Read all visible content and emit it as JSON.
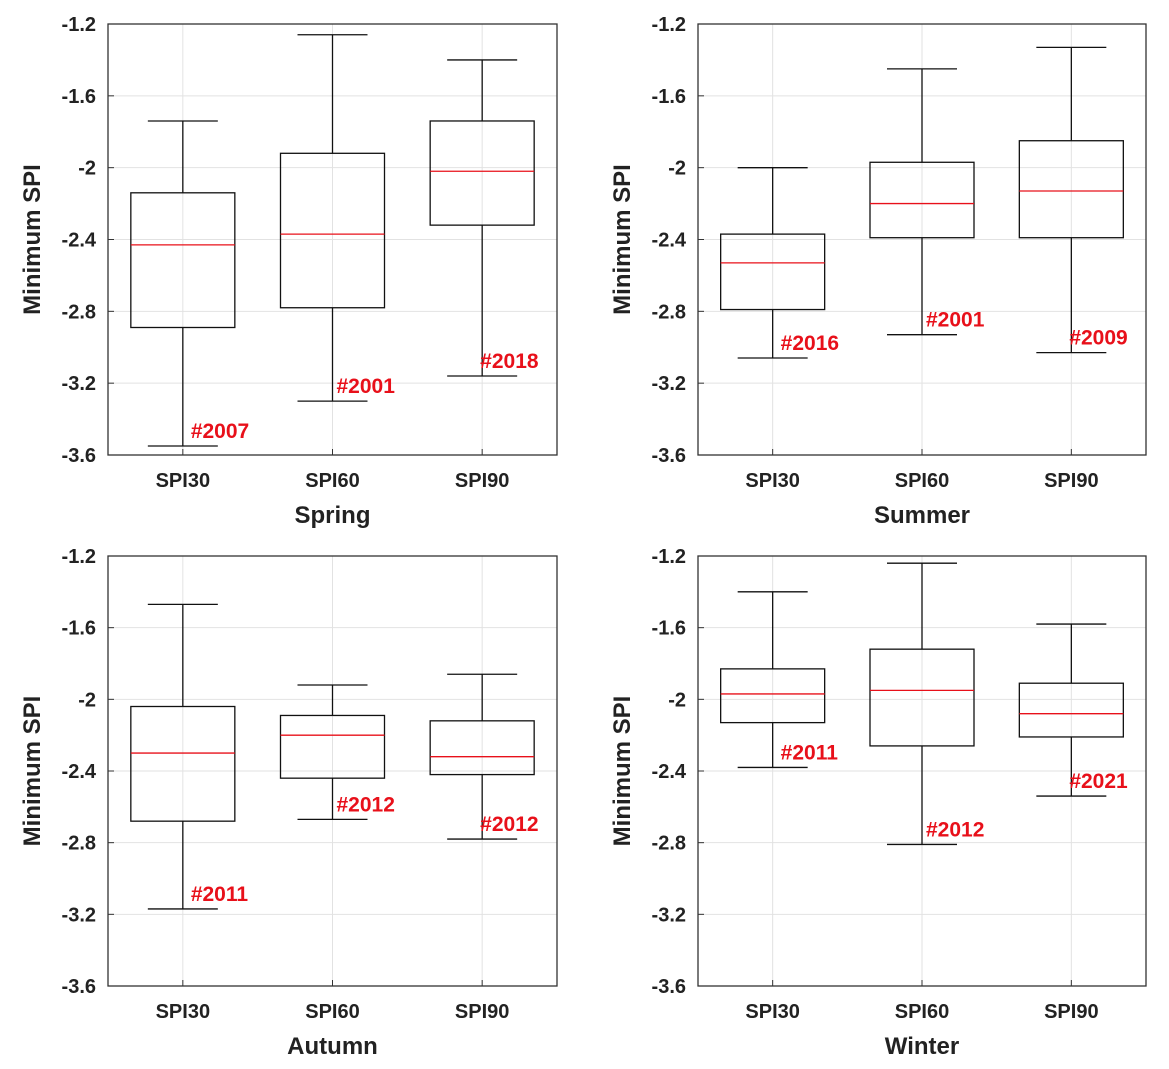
{
  "chart_data": [
    {
      "type": "box",
      "xlabel": "Spring",
      "ylabel": "Minimum SPI",
      "ylim": [
        -3.6,
        -1.2
      ],
      "yticks": [
        "-1.2",
        "-1.6",
        "-2",
        "-2.4",
        "-2.8",
        "-3.2",
        "-3.6"
      ],
      "grid": true,
      "categories": [
        "SPI30",
        "SPI60",
        "SPI90"
      ],
      "boxes": [
        {
          "min": -3.55,
          "q1": -2.89,
          "median": -2.43,
          "q3": -2.14,
          "max": -1.74,
          "annotation": "#2007"
        },
        {
          "min": -3.3,
          "q1": -2.78,
          "median": -2.37,
          "q3": -1.92,
          "max": -1.26,
          "annotation": "#2001"
        },
        {
          "min": -3.16,
          "q1": -2.32,
          "median": -2.02,
          "q3": -1.74,
          "max": -1.4,
          "annotation": "#2018"
        }
      ]
    },
    {
      "type": "box",
      "xlabel": "Summer",
      "ylabel": "Minimum SPI",
      "ylim": [
        -3.6,
        -1.2
      ],
      "yticks": [
        "-1.2",
        "-1.6",
        "-2",
        "-2.4",
        "-2.8",
        "-3.2",
        "-3.6"
      ],
      "grid": true,
      "categories": [
        "SPI30",
        "SPI60",
        "SPI90"
      ],
      "boxes": [
        {
          "min": -3.06,
          "q1": -2.79,
          "median": -2.53,
          "q3": -2.37,
          "max": -2.0,
          "annotation": "#2016"
        },
        {
          "min": -2.93,
          "q1": -2.39,
          "median": -2.2,
          "q3": -1.97,
          "max": -1.45,
          "annotation": "#2001"
        },
        {
          "min": -3.03,
          "q1": -2.39,
          "median": -2.13,
          "q3": -1.85,
          "max": -1.33,
          "annotation": "#2009"
        }
      ]
    },
    {
      "type": "box",
      "xlabel": "Autumn",
      "ylabel": "Minimum SPI",
      "ylim": [
        -3.6,
        -1.2
      ],
      "yticks": [
        "-1.2",
        "-1.6",
        "-2",
        "-2.4",
        "-2.8",
        "-3.2",
        "-3.6"
      ],
      "grid": true,
      "categories": [
        "SPI30",
        "SPI60",
        "SPI90"
      ],
      "boxes": [
        {
          "min": -3.17,
          "q1": -2.68,
          "median": -2.3,
          "q3": -2.04,
          "max": -1.47,
          "annotation": "#2011"
        },
        {
          "min": -2.67,
          "q1": -2.44,
          "median": -2.2,
          "q3": -2.09,
          "max": -1.92,
          "annotation": "#2012"
        },
        {
          "min": -2.78,
          "q1": -2.42,
          "median": -2.32,
          "q3": -2.12,
          "max": -1.86,
          "annotation": "#2012"
        }
      ]
    },
    {
      "type": "box",
      "xlabel": "Winter",
      "ylabel": "Minimum SPI",
      "ylim": [
        -3.6,
        -1.2
      ],
      "yticks": [
        "-1.2",
        "-1.6",
        "-2",
        "-2.4",
        "-2.8",
        "-3.2",
        "-3.6"
      ],
      "grid": true,
      "categories": [
        "SPI30",
        "SPI60",
        "SPI90"
      ],
      "boxes": [
        {
          "min": -2.38,
          "q1": -2.13,
          "median": -1.97,
          "q3": -1.83,
          "max": -1.4,
          "annotation": "#2011"
        },
        {
          "min": -2.81,
          "q1": -2.26,
          "median": -1.95,
          "q3": -1.72,
          "max": -1.24,
          "annotation": "#2012"
        },
        {
          "min": -2.54,
          "q1": -2.21,
          "median": -2.08,
          "q3": -1.91,
          "max": -1.58,
          "annotation": "#2021"
        }
      ]
    }
  ]
}
